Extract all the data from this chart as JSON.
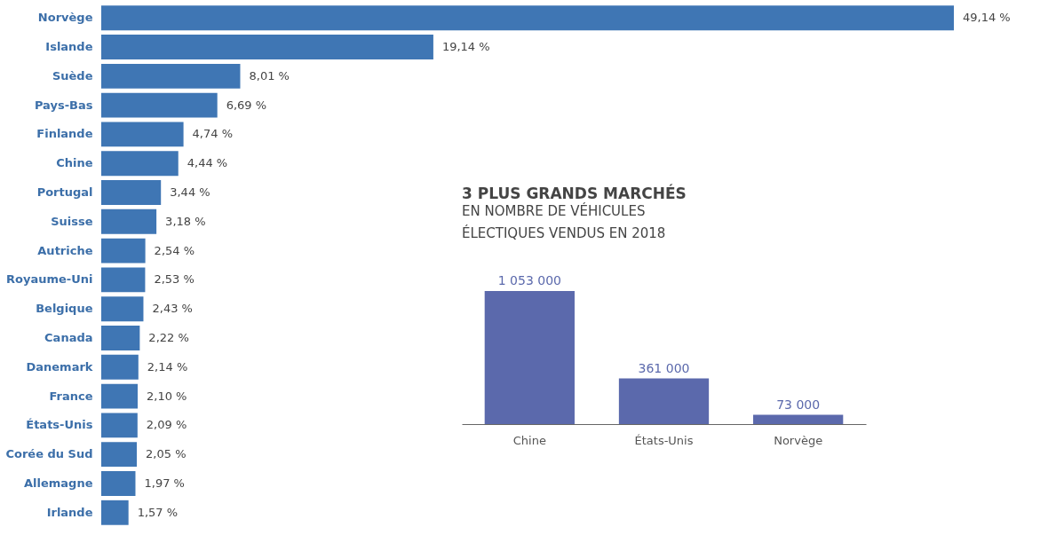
{
  "chart_data": [
    {
      "type": "bar",
      "orientation": "horizontal",
      "tick_labels": "y",
      "color": "#3f76b4",
      "categories": [
        "Norvège",
        "Islande",
        "Suède",
        "Pays-Bas",
        "Finlande",
        "Chine",
        "Portugal",
        "Suisse",
        "Autriche",
        "Royaume-Uni",
        "Belgique",
        "Canada",
        "Danemark",
        "France",
        "États-Unis",
        "Corée du Sud",
        "Allemagne",
        "Irlande"
      ],
      "values": [
        49.14,
        19.14,
        8.01,
        6.69,
        4.74,
        4.44,
        3.44,
        3.18,
        2.54,
        2.53,
        2.43,
        2.22,
        2.14,
        2.1,
        2.09,
        2.05,
        1.97,
        1.57
      ],
      "value_labels": [
        "49,14 %",
        "19,14 %",
        "8,01 %",
        "6,69 %",
        "4,74 %",
        "4,44 %",
        "3,44 %",
        "3,18 %",
        "2,54 %",
        "2,53 %",
        "2,43 %",
        "2,22 %",
        "2,14 %",
        "2,10 %",
        "2,09 %",
        "2,05 %",
        "1,97 %",
        "1,57 %"
      ]
    },
    {
      "type": "bar",
      "tick_labels": "x",
      "color": "#5b69ac",
      "title": "3 PLUS GRANDS MARCHÉS",
      "subtitle": "EN NOMBRE DE VÉHICULES ÉLECTIQUES VENDUS EN 2018",
      "categories": [
        "Chine",
        "États-Unis",
        "Norvège"
      ],
      "values": [
        1053000,
        361000,
        73000
      ],
      "value_labels": [
        "1 053 000",
        "361 000",
        "73 000"
      ]
    }
  ]
}
